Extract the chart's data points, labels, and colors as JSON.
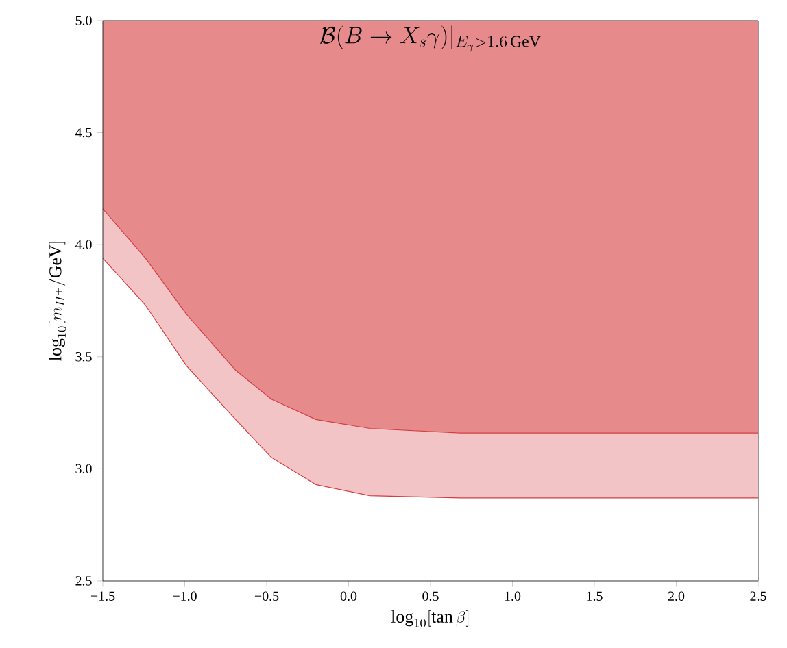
{
  "chart_data": {
    "type": "line",
    "title": "\\mathcal{B}(B\\to X_s\\gamma)|_{E_\\gamma>1.6\\,\\mathrm{GeV}}",
    "xlabel": "\\log_{10}[\\tan\\beta]",
    "ylabel": "\\log_{10}[m_{H^+}/\\mathrm{GeV}]",
    "x": [
      -1.5,
      -1.24,
      -0.99,
      -0.69,
      -0.47,
      -0.2,
      0.13,
      0.68,
      2.5
    ],
    "series": [
      {
        "color": "#d63c40",
        "values": [
          4.16,
          3.94,
          3.69,
          3.44,
          3.31,
          3.22,
          3.18,
          3.16,
          3.16
        ],
        "lower": [
          4.16,
          3.94,
          3.69,
          3.44,
          3.31,
          3.22,
          3.18,
          3.16,
          3.16
        ],
        "upper": [
          5.0,
          5.0,
          5.0,
          5.0,
          5.0,
          5.0,
          5.0,
          5.0,
          5.0
        ]
      },
      {
        "color": "#d63c40",
        "values": [
          3.94,
          3.73,
          3.46,
          3.22,
          3.05,
          2.93,
          2.88,
          2.87,
          2.87
        ],
        "lower": [
          3.94,
          3.73,
          3.46,
          3.22,
          3.05,
          2.93,
          2.88,
          2.87,
          2.87
        ],
        "upper": [
          4.16,
          3.94,
          3.69,
          3.44,
          3.31,
          3.22,
          3.18,
          3.16,
          3.16
        ]
      }
    ],
    "xlim": [
      -1.5,
      2.5
    ],
    "ylim": [
      2.5,
      5.0
    ],
    "xticks": [
      {
        "value": -1.5,
        "label": "−1.5"
      },
      {
        "value": -1.0,
        "label": "−1.0"
      },
      {
        "value": -0.5,
        "label": "−0.5"
      },
      {
        "value": 0.0,
        "label": "0.0"
      },
      {
        "value": 0.5,
        "label": "0.5"
      },
      {
        "value": 1.0,
        "label": "1.0"
      },
      {
        "value": 1.5,
        "label": "1.5"
      },
      {
        "value": 2.0,
        "label": "2.0"
      },
      {
        "value": 2.5,
        "label": "2.5"
      }
    ],
    "yticks": [
      {
        "value": 2.5,
        "label": "2.5"
      },
      {
        "value": 3.0,
        "label": "3.0"
      },
      {
        "value": 3.5,
        "label": "3.5"
      },
      {
        "value": 4.0,
        "label": "4.0"
      },
      {
        "value": 4.5,
        "label": "4.5"
      },
      {
        "value": 5.0,
        "label": "5.0"
      }
    ]
  }
}
